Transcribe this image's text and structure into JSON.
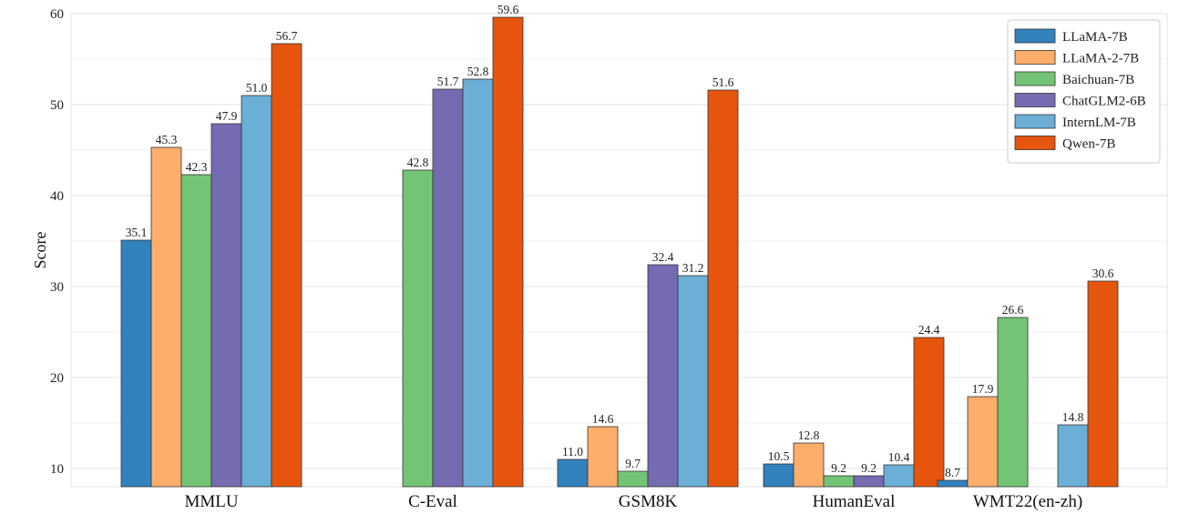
{
  "chart_data": {
    "type": "bar",
    "ylabel": "Score",
    "ylim": [
      8,
      60
    ],
    "yticks": [
      10,
      20,
      30,
      40,
      50,
      60
    ],
    "grid": true,
    "legend_position": "top-right",
    "categories": [
      "MMLU",
      "C-Eval",
      "GSM8K",
      "HumanEval",
      "WMT22(en-zh)"
    ],
    "series": [
      {
        "name": "LLaMA-7B",
        "color": "#3282bd",
        "values": [
          35.1,
          null,
          11.0,
          10.5,
          8.7
        ]
      },
      {
        "name": "LLaMA-2-7B",
        "color": "#fdae6b",
        "values": [
          45.3,
          null,
          14.6,
          12.8,
          17.9
        ]
      },
      {
        "name": "Baichuan-7B",
        "color": "#74c476",
        "values": [
          42.3,
          42.8,
          9.7,
          9.2,
          26.6
        ]
      },
      {
        "name": "ChatGLM2-6B",
        "color": "#756bb1",
        "values": [
          47.9,
          51.7,
          32.4,
          9.2,
          null
        ]
      },
      {
        "name": "InternLM-7B",
        "color": "#6baed6",
        "values": [
          51.0,
          52.8,
          31.2,
          10.4,
          14.8
        ]
      },
      {
        "name": "Qwen-7B",
        "color": "#e6550d",
        "values": [
          56.7,
          59.6,
          51.6,
          24.4,
          30.6
        ]
      }
    ]
  }
}
